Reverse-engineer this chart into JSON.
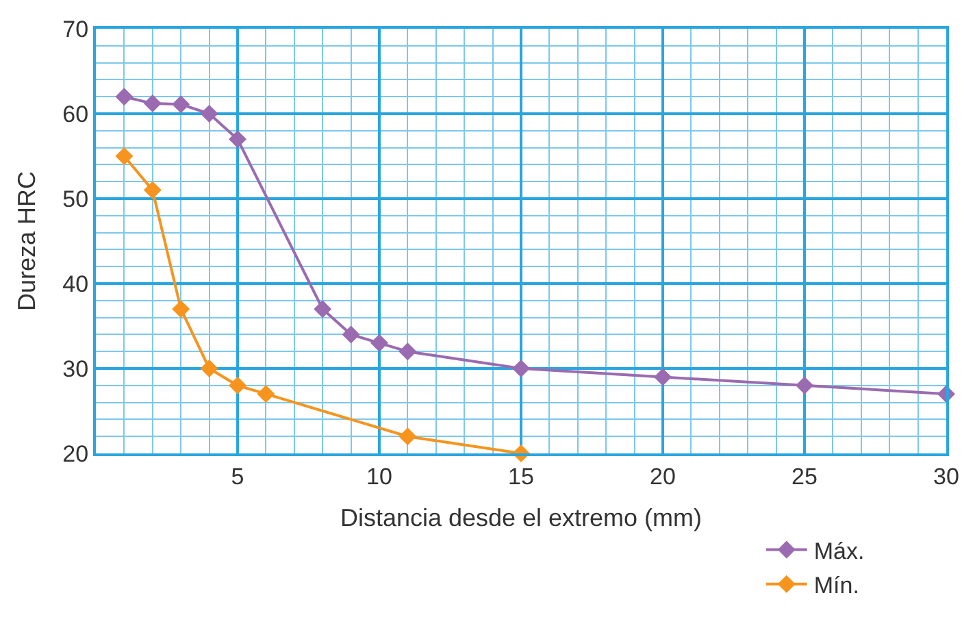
{
  "chart_data": {
    "type": "line",
    "xlabel": "Distancia desde el extremo (mm)",
    "ylabel": "Dureza HRC",
    "xlim": [
      0,
      30
    ],
    "xticks": [
      {
        "value": 1,
        "label": null
      },
      {
        "value": 2,
        "label": null
      },
      {
        "value": 3,
        "label": null
      },
      {
        "value": 4,
        "label": null
      },
      5,
      {
        "value": 6,
        "label": null
      },
      {
        "value": 7,
        "label": null
      },
      {
        "value": 8,
        "label": null
      },
      {
        "value": 9,
        "label": null
      },
      10,
      {
        "value": 11,
        "label": null
      },
      {
        "value": 12,
        "label": null
      },
      {
        "value": 13,
        "label": null
      },
      {
        "value": 14,
        "label": null
      },
      15,
      {
        "value": 16,
        "label": null
      },
      {
        "value": 17,
        "label": null
      },
      {
        "value": 18,
        "label": null
      },
      {
        "value": 19,
        "label": null
      },
      20,
      {
        "value": 21,
        "label": null
      },
      {
        "value": 22,
        "label": null
      },
      {
        "value": 23,
        "label": null
      },
      {
        "value": 24,
        "label": null
      },
      25,
      {
        "value": 26,
        "label": null
      },
      {
        "value": 27,
        "label": null
      },
      {
        "value": 28,
        "label": null
      },
      {
        "value": 29,
        "label": null
      },
      30
    ],
    "ylim": [
      20,
      70
    ],
    "yticks": [
      20,
      {
        "value": 22,
        "label": null
      },
      {
        "value": 24,
        "label": null
      },
      {
        "value": 26,
        "label": null
      },
      {
        "value": 28,
        "label": null
      },
      30,
      {
        "value": 32,
        "label": null
      },
      {
        "value": 34,
        "label": null
      },
      {
        "value": 36,
        "label": null
      },
      {
        "value": 38,
        "label": null
      },
      40,
      {
        "value": 42,
        "label": null
      },
      {
        "value": 44,
        "label": null
      },
      {
        "value": 46,
        "label": null
      },
      {
        "value": 48,
        "label": null
      },
      50,
      {
        "value": 52,
        "label": null
      },
      {
        "value": 54,
        "label": null
      },
      {
        "value": 56,
        "label": null
      },
      {
        "value": 58,
        "label": null
      },
      60,
      {
        "value": 62,
        "label": null
      },
      {
        "value": 64,
        "label": null
      },
      {
        "value": 66,
        "label": null
      },
      {
        "value": 68,
        "label": null
      },
      70
    ],
    "grid": true,
    "legend": "bottom right",
    "marker": "diamond",
    "line_style": "solid",
    "series": [
      {
        "name": "Máx.",
        "color": "#9a6bb0",
        "x": [
          1,
          2,
          3,
          4,
          5,
          8,
          9,
          10,
          11,
          15,
          20,
          25,
          30
        ],
        "values": [
          62,
          61.2,
          61.1,
          60,
          57,
          37,
          34,
          33,
          32,
          30,
          29,
          28,
          27
        ]
      },
      {
        "name": "Mín.",
        "color": "#f7941d",
        "x": [
          1,
          2,
          3,
          4,
          5,
          6,
          11,
          15
        ],
        "values": [
          55,
          51,
          37,
          30,
          28,
          27,
          22,
          20
        ]
      }
    ]
  }
}
